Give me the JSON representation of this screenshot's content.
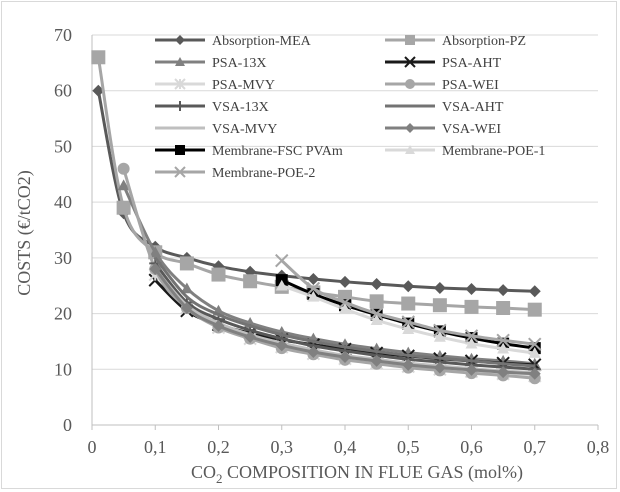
{
  "chart_data": {
    "type": "line",
    "title": "",
    "xlabel": "COMPOSITION IN FLUE GAS (mol%)",
    "xlabel_prefix": "CO",
    "xlabel_sub": "2",
    "ylabel": "COSTS (€/tCO2)",
    "xlim": [
      0,
      0.8
    ],
    "ylim": [
      0,
      70
    ],
    "x_ticks": [
      "0",
      "0,1",
      "0,2",
      "0,3",
      "0,4",
      "0,5",
      "0,6",
      "0,7",
      "0,8"
    ],
    "y_ticks": [
      "0",
      "10",
      "20",
      "30",
      "40",
      "50",
      "60",
      "70"
    ],
    "grid": "horizontal",
    "legend_position": "top, inside plot",
    "series": [
      {
        "name": "Absorption-MEA",
        "color": "#595959",
        "marker": "diamond",
        "x": [
          0.01,
          0.05,
          0.1,
          0.15,
          0.2,
          0.25,
          0.3,
          0.35,
          0.4,
          0.45,
          0.5,
          0.55,
          0.6,
          0.65,
          0.7
        ],
        "y": [
          60,
          38,
          32,
          30,
          28.5,
          27.5,
          26.8,
          26.2,
          25.7,
          25.3,
          24.9,
          24.6,
          24.4,
          24.2,
          24
        ]
      },
      {
        "name": "Absorption-PZ",
        "color": "#a6a6a6",
        "marker": "square",
        "x": [
          0.01,
          0.05,
          0.1,
          0.15,
          0.2,
          0.25,
          0.3,
          0.35,
          0.4,
          0.45,
          0.5,
          0.55,
          0.6,
          0.65,
          0.7
        ],
        "y": [
          66,
          39,
          31,
          29,
          27,
          25.8,
          24.8,
          23.8,
          23,
          22.2,
          21.8,
          21.5,
          21.2,
          21,
          20.7
        ]
      },
      {
        "name": "PSA-13X",
        "color": "#808080",
        "marker": "triangle",
        "x": [
          0.05,
          0.1,
          0.15,
          0.2,
          0.25,
          0.3,
          0.35,
          0.4,
          0.45,
          0.5,
          0.55,
          0.6,
          0.65,
          0.7
        ],
        "y": [
          43,
          31,
          24.5,
          20.5,
          18.3,
          16.7,
          15.5,
          14.5,
          13.7,
          13,
          12.4,
          11.9,
          11.5,
          11
        ]
      },
      {
        "name": "PSA-AHT",
        "color": "#1a1a1a",
        "marker": "x",
        "x": [
          0.1,
          0.15,
          0.2,
          0.25,
          0.3,
          0.35,
          0.4,
          0.45,
          0.5,
          0.55,
          0.6,
          0.65,
          0.7
        ],
        "y": [
          26,
          20.5,
          18,
          16.5,
          15.3,
          14.4,
          13.6,
          12.9,
          12.4,
          11.9,
          11.5,
          11.1,
          10.8
        ]
      },
      {
        "name": "PSA-MVY",
        "color": "#d9d9d9",
        "marker": "star",
        "x": [
          0.1,
          0.15,
          0.2,
          0.25,
          0.3,
          0.35,
          0.4,
          0.45,
          0.5,
          0.55,
          0.6,
          0.65,
          0.7
        ],
        "y": [
          27,
          21,
          17.5,
          15.5,
          14,
          12.8,
          11.9,
          11.1,
          10.5,
          10,
          9.6,
          9.2,
          8.8
        ]
      },
      {
        "name": "PSA-WEI",
        "color": "#a6a6a6",
        "marker": "circle",
        "x": [
          0.05,
          0.1,
          0.15,
          0.2,
          0.25,
          0.3,
          0.35,
          0.4,
          0.45,
          0.5,
          0.55,
          0.6,
          0.65,
          0.7
        ],
        "y": [
          46,
          28,
          21,
          17.5,
          15.5,
          13.8,
          12.7,
          11.7,
          11,
          10.3,
          9.8,
          9.3,
          8.9,
          8.4
        ]
      },
      {
        "name": "VSA-13X",
        "color": "#595959",
        "marker": "plus",
        "x": [
          0.1,
          0.15,
          0.2,
          0.25,
          0.3,
          0.35,
          0.4,
          0.45,
          0.5,
          0.55,
          0.6,
          0.65,
          0.7
        ],
        "y": [
          29,
          22,
          19,
          17,
          15.5,
          14.2,
          13.3,
          12.5,
          11.8,
          11.3,
          10.8,
          10.4,
          10
        ]
      },
      {
        "name": "VSA-AHT",
        "color": "#737373",
        "marker": "none",
        "x": [
          0.1,
          0.15,
          0.2,
          0.25,
          0.3,
          0.35,
          0.4,
          0.45,
          0.5,
          0.55,
          0.6,
          0.65,
          0.7
        ],
        "y": [
          30,
          23,
          19.8,
          17.8,
          16.2,
          15,
          14,
          13.2,
          12.5,
          12,
          11.5,
          11,
          10.6
        ]
      },
      {
        "name": "VSA-MVY",
        "color": "#bfbfbf",
        "marker": "none",
        "x": [
          0.1,
          0.15,
          0.2,
          0.25,
          0.3,
          0.35,
          0.4,
          0.45,
          0.5,
          0.55,
          0.6,
          0.65,
          0.7
        ],
        "y": [
          28,
          21.5,
          18.3,
          16.2,
          14.7,
          13.5,
          12.5,
          11.8,
          11.1,
          10.6,
          10.1,
          9.7,
          9.4
        ]
      },
      {
        "name": "VSA-WEI",
        "color": "#808080",
        "marker": "diamond",
        "x": [
          0.1,
          0.15,
          0.2,
          0.25,
          0.3,
          0.35,
          0.4,
          0.45,
          0.5,
          0.55,
          0.6,
          0.65,
          0.7
        ],
        "y": [
          28,
          21,
          17.8,
          15.8,
          14.3,
          13.1,
          12.2,
          11.5,
          10.8,
          10.3,
          9.9,
          9.5,
          9.2
        ]
      },
      {
        "name": "Membrane-FSC PVAm",
        "color": "#000000",
        "marker": "square",
        "x": [
          0.3,
          0.35,
          0.4,
          0.45,
          0.5,
          0.55,
          0.6,
          0.65,
          0.7
        ],
        "y": [
          26,
          23.5,
          21.5,
          19.8,
          18.2,
          16.8,
          15.6,
          14.6,
          13.8
        ]
      },
      {
        "name": "Membrane-POE-1",
        "color": "#d9d9d9",
        "marker": "triangle",
        "x": [
          0.3,
          0.35,
          0.4,
          0.45,
          0.5,
          0.55,
          0.6,
          0.65,
          0.7
        ],
        "y": [
          25,
          23,
          20.8,
          18.8,
          17.2,
          15.8,
          14.6,
          13.7,
          12.9
        ]
      },
      {
        "name": "Membrane-POE-2",
        "color": "#a6a6a6",
        "marker": "x",
        "x": [
          0.3,
          0.35,
          0.4,
          0.45,
          0.5,
          0.55,
          0.6,
          0.65,
          0.7
        ],
        "y": [
          29.5,
          24.5,
          22,
          20,
          18.5,
          17,
          16,
          15.2,
          14.5
        ]
      }
    ]
  }
}
